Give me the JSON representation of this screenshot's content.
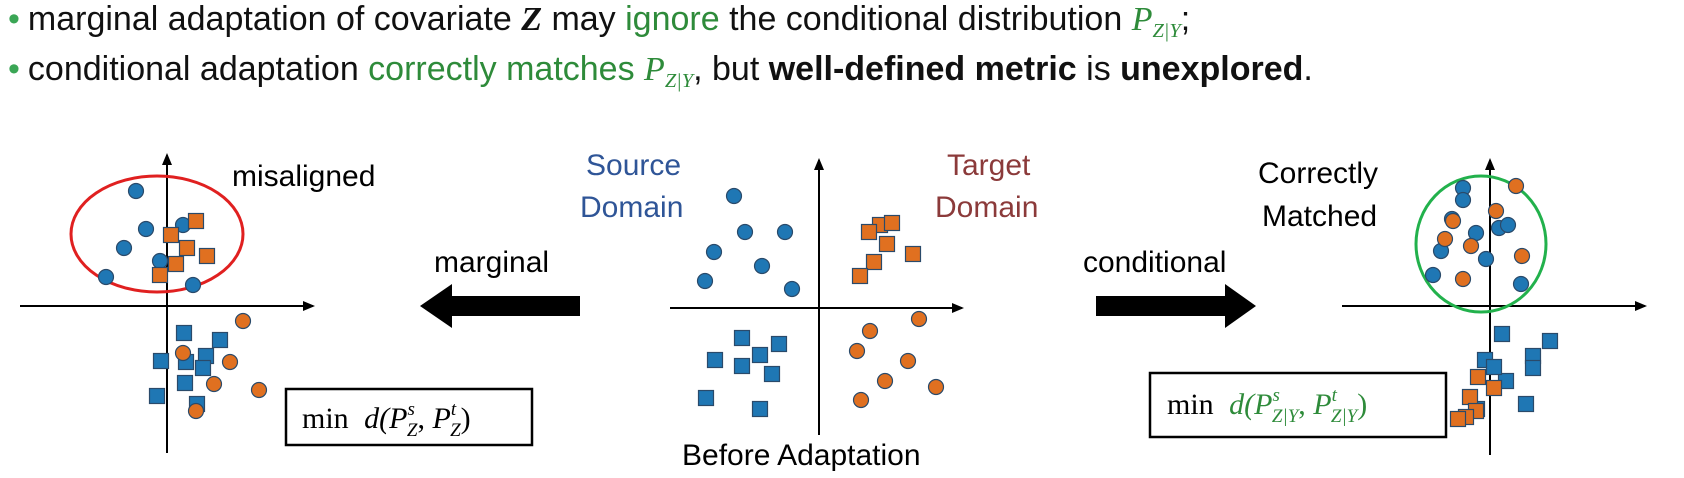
{
  "bullets": {
    "line1": {
      "part1": "marginal adaptation of covariate ",
      "var_z": "Z",
      "part2": " may ",
      "ignore": "ignore",
      "part3": " the conditional distribution ",
      "p": "P",
      "p_sub": "Z|Y",
      "end": ";"
    },
    "line2": {
      "part1": "conditional adaptation ",
      "correctly_matches": "correctly matches ",
      "p": "P",
      "p_sub": "Z|Y",
      "part2": ", but ",
      "metric": "well-defined metric",
      "part3": " is ",
      "unexplored": "unexplored",
      "end": "."
    }
  },
  "labels": {
    "misaligned": "misaligned",
    "source_line1": "Source",
    "source_line2": "Domain",
    "target_line1": "Target",
    "target_line2": "Domain",
    "correctly_line1": "Correctly",
    "correctly_line2": "Matched",
    "marginal": "marginal",
    "conditional": "conditional",
    "before": "Before Adaptation"
  },
  "formulas": {
    "left_min": "min",
    "left_d": "d(",
    "left_p1": "P",
    "left_p1_sup": "s",
    "left_p1_sub": "Z",
    "left_comma": ", ",
    "left_p2": "P",
    "left_p2_sup": "t",
    "left_p2_sub": "Z",
    "left_close": ")",
    "right_min": "min",
    "right_d": "d(",
    "right_p1": "P",
    "right_p1_sup": "s",
    "right_p1_sub": "Z|Y",
    "right_comma": ", ",
    "right_p2": "P",
    "right_p2_sup": "t",
    "right_p2_sub": "Z|Y",
    "right_close": ")"
  },
  "colors": {
    "blue": "#1f77b4",
    "orange": "#e07020",
    "source_text": "#2f5597",
    "target_text": "#8b3a3a",
    "red_ellipse": "#e02020",
    "green_ellipse": "#22b14c",
    "green_text": "#2e8b3a"
  }
}
